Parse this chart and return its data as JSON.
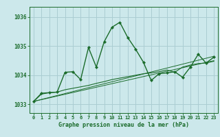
{
  "background_color": "#cce8eb",
  "grid_color": "#aacdd2",
  "line_color": "#1a6b2a",
  "title": "Graphe pression niveau de la mer (hPa)",
  "xlim": [
    -0.5,
    23.5
  ],
  "ylim": [
    1032.7,
    1036.35
  ],
  "yticks": [
    1033,
    1034,
    1035,
    1036
  ],
  "xtick_labels": [
    "0",
    "1",
    "2",
    "3",
    "4",
    "5",
    "6",
    "7",
    "8",
    "9",
    "10",
    "11",
    "12",
    "13",
    "14",
    "15",
    "16",
    "17",
    "18",
    "19",
    "20",
    "21",
    "22",
    "23"
  ],
  "trend1_x": [
    0,
    23
  ],
  "trend1_y": [
    1033.1,
    1034.65
  ],
  "trend2_x": [
    0,
    23
  ],
  "trend2_y": [
    1033.1,
    1034.5
  ],
  "smooth_x": [
    0,
    1,
    2,
    3,
    4,
    5,
    6,
    7,
    8,
    9,
    10,
    11,
    12,
    13,
    14,
    15,
    16,
    17,
    18,
    19,
    20,
    21,
    22,
    23
  ],
  "smooth_y": [
    1033.1,
    1033.35,
    1033.4,
    1033.42,
    1033.5,
    1033.55,
    1033.6,
    1033.65,
    1033.72,
    1033.78,
    1033.85,
    1033.9,
    1033.95,
    1034.0,
    1034.05,
    1034.08,
    1034.12,
    1034.18,
    1034.1,
    1034.28,
    1034.35,
    1034.4,
    1034.42,
    1034.48
  ],
  "main_x": [
    0,
    1,
    2,
    3,
    4,
    5,
    6,
    7,
    8,
    9,
    10,
    11,
    12,
    13,
    14,
    15,
    16,
    17,
    18,
    19,
    20,
    21,
    22,
    23
  ],
  "main_y": [
    1033.1,
    1033.38,
    1033.4,
    1033.42,
    1034.1,
    1034.12,
    1033.85,
    1034.95,
    1034.28,
    1035.15,
    1035.65,
    1035.82,
    1035.3,
    1034.9,
    1034.45,
    1033.82,
    1034.05,
    1034.08,
    1034.12,
    1033.93,
    1034.28,
    1034.72,
    1034.42,
    1034.62
  ]
}
